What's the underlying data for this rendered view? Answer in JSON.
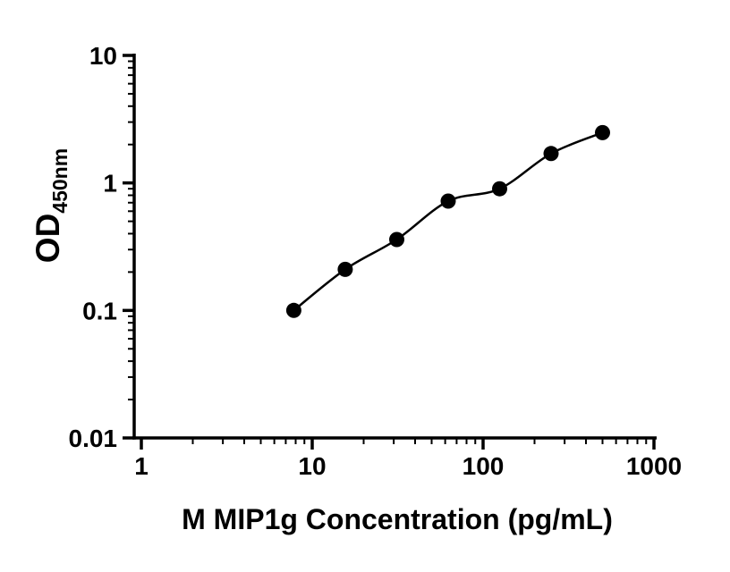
{
  "figure": {
    "background_color": "#ffffff"
  },
  "colors": {
    "axis": "#000000",
    "marker": "#000000",
    "curve": "#000000",
    "background": "#ffffff"
  },
  "chart_data": {
    "type": "scatter",
    "title": "",
    "xlabel": "M MIP1g Concentration (pg/mL)",
    "ylabel_main": "OD",
    "ylabel_sub": "450nm",
    "x_scale": "log10",
    "y_scale": "log10",
    "xlim": [
      1,
      1000
    ],
    "ylim": [
      0.01,
      10
    ],
    "x_ticks": [
      1,
      10,
      100,
      1000
    ],
    "x_tick_labels": [
      "1",
      "10",
      "100",
      "1000"
    ],
    "y_ticks": [
      10,
      1,
      0.1,
      0.01
    ],
    "y_tick_labels": [
      "10",
      "1",
      "0.1",
      "0.01"
    ],
    "grid": false,
    "legend": "none",
    "series": [
      {
        "name": "standard-curve",
        "marker": "filled-circle",
        "line": "smooth",
        "color": "#000000",
        "x": [
          7.8,
          15.6,
          31.25,
          62.5,
          125,
          250,
          500
        ],
        "y": [
          0.1,
          0.21,
          0.36,
          0.72,
          0.9,
          1.7,
          2.48
        ]
      }
    ]
  }
}
